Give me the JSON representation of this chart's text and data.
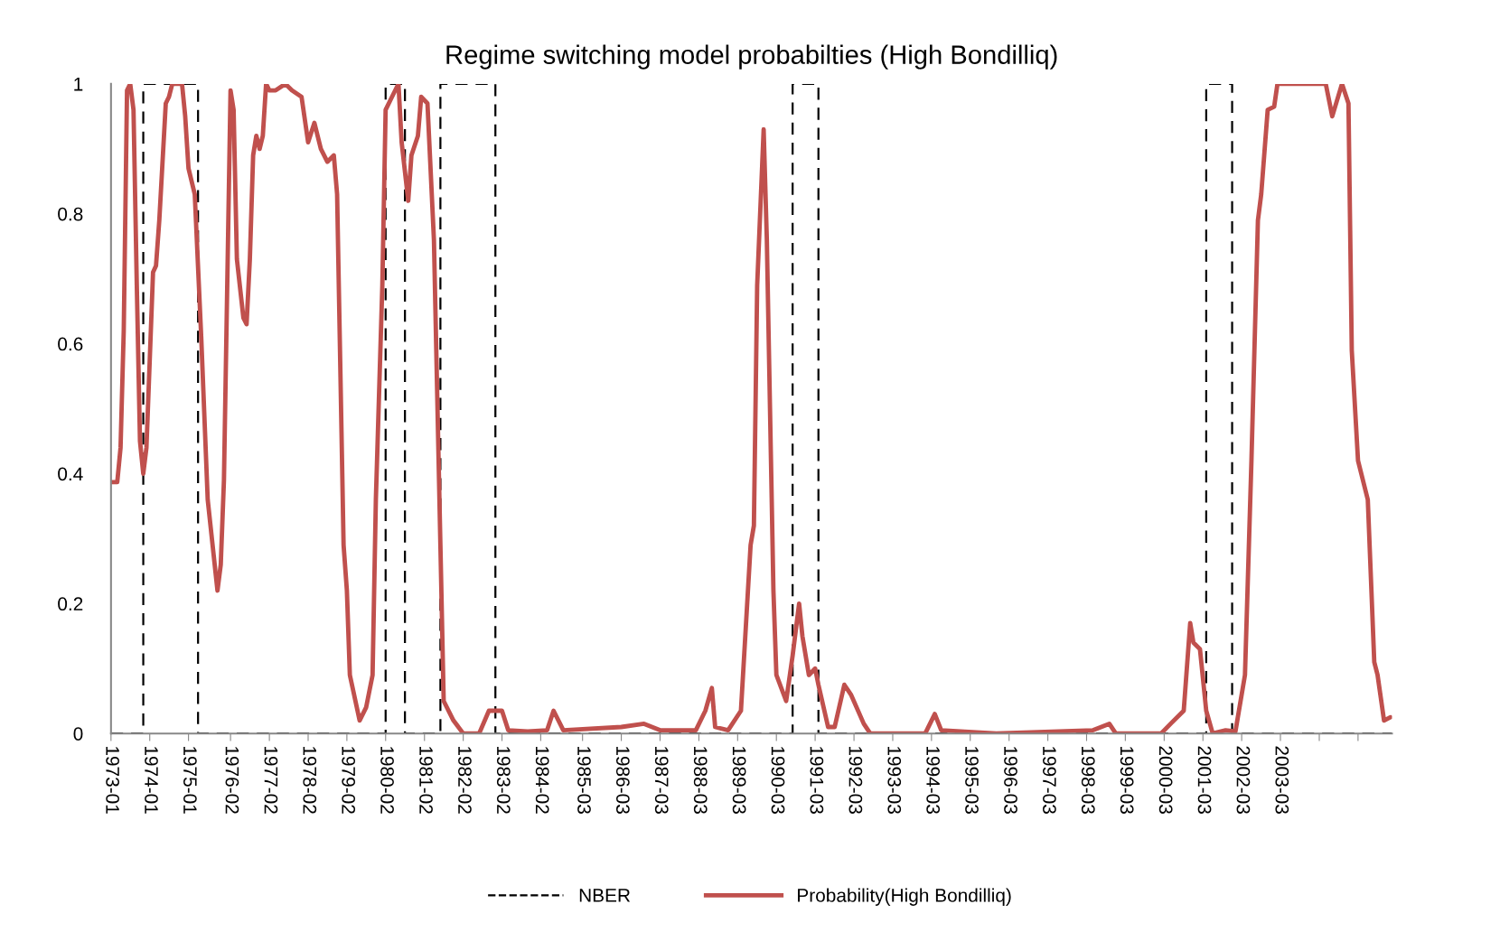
{
  "chart_data": {
    "type": "line",
    "title": "Regime switching model probabilties (High Bondilliq)",
    "xlim": [
      "1973-01",
      "2006-01-15"
    ],
    "ylim": [
      0,
      1
    ],
    "xticks": [
      "1973-01",
      "1974-01",
      "1975-01",
      "1976-02",
      "1977-02",
      "1978-02",
      "1979-02",
      "1980-02",
      "1981-02",
      "1982-02",
      "1983-02",
      "1984-02",
      "1985-03",
      "1986-03",
      "1987-03",
      "1988-03",
      "1989-03",
      "1990-03",
      "1991-03",
      "1992-03",
      "1993-03",
      "1994-03",
      "1995-03",
      "1996-03",
      "1997-03",
      "1998-03",
      "1999-03",
      "2000-03",
      "2001-03",
      "2002-03",
      "2003-03",
      {
        "value": "2004-03",
        "label": null
      },
      {
        "value": "2005-03",
        "label": null
      }
    ],
    "yticks": [
      0,
      0.2,
      0.4,
      0.6,
      0.8,
      1
    ],
    "grid": false,
    "legend": "bottom",
    "marker": "none",
    "series": [
      {
        "name": "NBER",
        "color": "#000000",
        "line_style": "dashed",
        "x": [
          "1973-01",
          "1973-11",
          "1973-11",
          "1975-04",
          "1975-04",
          "1980-02",
          "1980-02",
          "1980-08",
          "1980-08",
          "1981-07",
          "1981-07",
          "1982-12",
          "1982-12",
          "1990-08",
          "1990-08",
          "1991-04",
          "1991-04",
          "2001-04",
          "2001-04",
          "2001-12",
          "2001-12",
          "2006-01-15"
        ],
        "values": [
          0,
          0,
          1,
          1,
          0,
          0,
          1,
          1,
          0,
          0,
          1,
          1,
          0,
          0,
          1,
          1,
          0,
          0,
          1,
          1,
          0,
          0
        ]
      },
      {
        "name": "Probability(High Bondilliq)",
        "color": "#c0504d",
        "line_style": "solid",
        "x": [
          "1973-01",
          "1973-03",
          "1973-04",
          "1973-05",
          "1973-06",
          "1973-07",
          "1973-08",
          "1973-09",
          "1973-10",
          "1973-11",
          "1973-12",
          "1974-02",
          "1974-03",
          "1974-04",
          "1974-06",
          "1974-07",
          "1974-08",
          "1974-11",
          "1974-12",
          "1975-01",
          "1975-03",
          "1975-05",
          "1975-07",
          "1975-10",
          "1975-11",
          "1975-12",
          "1976-02",
          "1976-03",
          "1976-04",
          "1976-06",
          "1976-07",
          "1976-08",
          "1976-09",
          "1976-10",
          "1976-11",
          "1976-12",
          "1977-01",
          "1977-02",
          "1977-04",
          "1977-07",
          "1977-09",
          "1977-12",
          "1978-02",
          "1978-04",
          "1978-06",
          "1978-08",
          "1978-10",
          "1978-11",
          "1979-01",
          "1979-02",
          "1979-03",
          "1979-06",
          "1979-08",
          "1979-10",
          "1979-11",
          "1980-01",
          "1980-02",
          "1980-04",
          "1980-06",
          "1980-07",
          "1980-09",
          "1980-10",
          "1980-12",
          "1981-01",
          "1981-03",
          "1981-05",
          "1981-07",
          "1981-08",
          "1981-11",
          "1982-02",
          "1982-07",
          "1982-10",
          "1983-02",
          "1983-04",
          "1983-10",
          "1984-04",
          "1984-06",
          "1984-09",
          "1986-03",
          "1986-10",
          "1987-03",
          "1988-02",
          "1988-05",
          "1988-07",
          "1988-08",
          "1988-12",
          "1989-04",
          "1989-07",
          "1989-08",
          "1989-09",
          "1989-11",
          "1989-12",
          "1990-02",
          "1990-03",
          "1990-06",
          "1990-08",
          "1990-10",
          "1990-11",
          "1991-01",
          "1991-03",
          "1991-04",
          "1991-07",
          "1991-09",
          "1991-12",
          "1992-02",
          "1992-06",
          "1992-08",
          "1994-01",
          "1994-04",
          "1994-06",
          "1995-11",
          "1998-05",
          "1998-10",
          "1998-12",
          "2000-02",
          "2000-05",
          "2000-09",
          "2000-11",
          "2000-12",
          "2001-02",
          "2001-04",
          "2001-06",
          "2001-10",
          "2002-01",
          "2002-04",
          "2002-06",
          "2002-08",
          "2002-09",
          "2002-11",
          "2003-01",
          "2003-02",
          "2003-09",
          "2003-12",
          "2004-05",
          "2004-07",
          "2004-10",
          "2004-12",
          "2005-01",
          "2005-03",
          "2005-06",
          "2005-08",
          "2005-09",
          "2005-11",
          "2006-01"
        ],
        "values": [
          0.387,
          0.387,
          0.44,
          0.62,
          0.99,
          1,
          0.96,
          0.69,
          0.45,
          0.4,
          0.44,
          0.71,
          0.72,
          0.79,
          0.97,
          0.98,
          1,
          1,
          0.95,
          0.87,
          0.83,
          0.61,
          0.36,
          0.22,
          0.26,
          0.39,
          0.99,
          0.96,
          0.73,
          0.64,
          0.63,
          0.73,
          0.89,
          0.92,
          0.9,
          0.92,
          1,
          0.99,
          0.99,
          1,
          0.99,
          0.98,
          0.91,
          0.94,
          0.9,
          0.88,
          0.89,
          0.83,
          0.29,
          0.22,
          0.09,
          0.02,
          0.04,
          0.09,
          0.36,
          0.69,
          0.96,
          0.98,
          1,
          0.91,
          0.82,
          0.89,
          0.92,
          0.98,
          0.97,
          0.76,
          0.29,
          0.05,
          0.02,
          0,
          0,
          0.035,
          0.035,
          0.005,
          0.003,
          0.005,
          0.035,
          0.005,
          0.01,
          0.015,
          0.005,
          0.005,
          0.035,
          0.07,
          0.01,
          0.005,
          0.035,
          0.29,
          0.32,
          0.69,
          0.93,
          0.76,
          0.22,
          0.09,
          0.05,
          0.12,
          0.2,
          0.15,
          0.09,
          0.1,
          0.075,
          0.01,
          0.01,
          0.075,
          0.06,
          0.015,
          0,
          0,
          0.03,
          0.005,
          0,
          0.005,
          0.015,
          0,
          0,
          0.015,
          0.035,
          0.17,
          0.14,
          0.13,
          0.035,
          0,
          0.005,
          0.003,
          0.09,
          0.42,
          0.79,
          0.83,
          0.96,
          0.965,
          1,
          1,
          1,
          1,
          0.95,
          1,
          0.97,
          0.59,
          0.42,
          0.36,
          0.11,
          0.09,
          0.02,
          0.025
        ]
      }
    ]
  }
}
